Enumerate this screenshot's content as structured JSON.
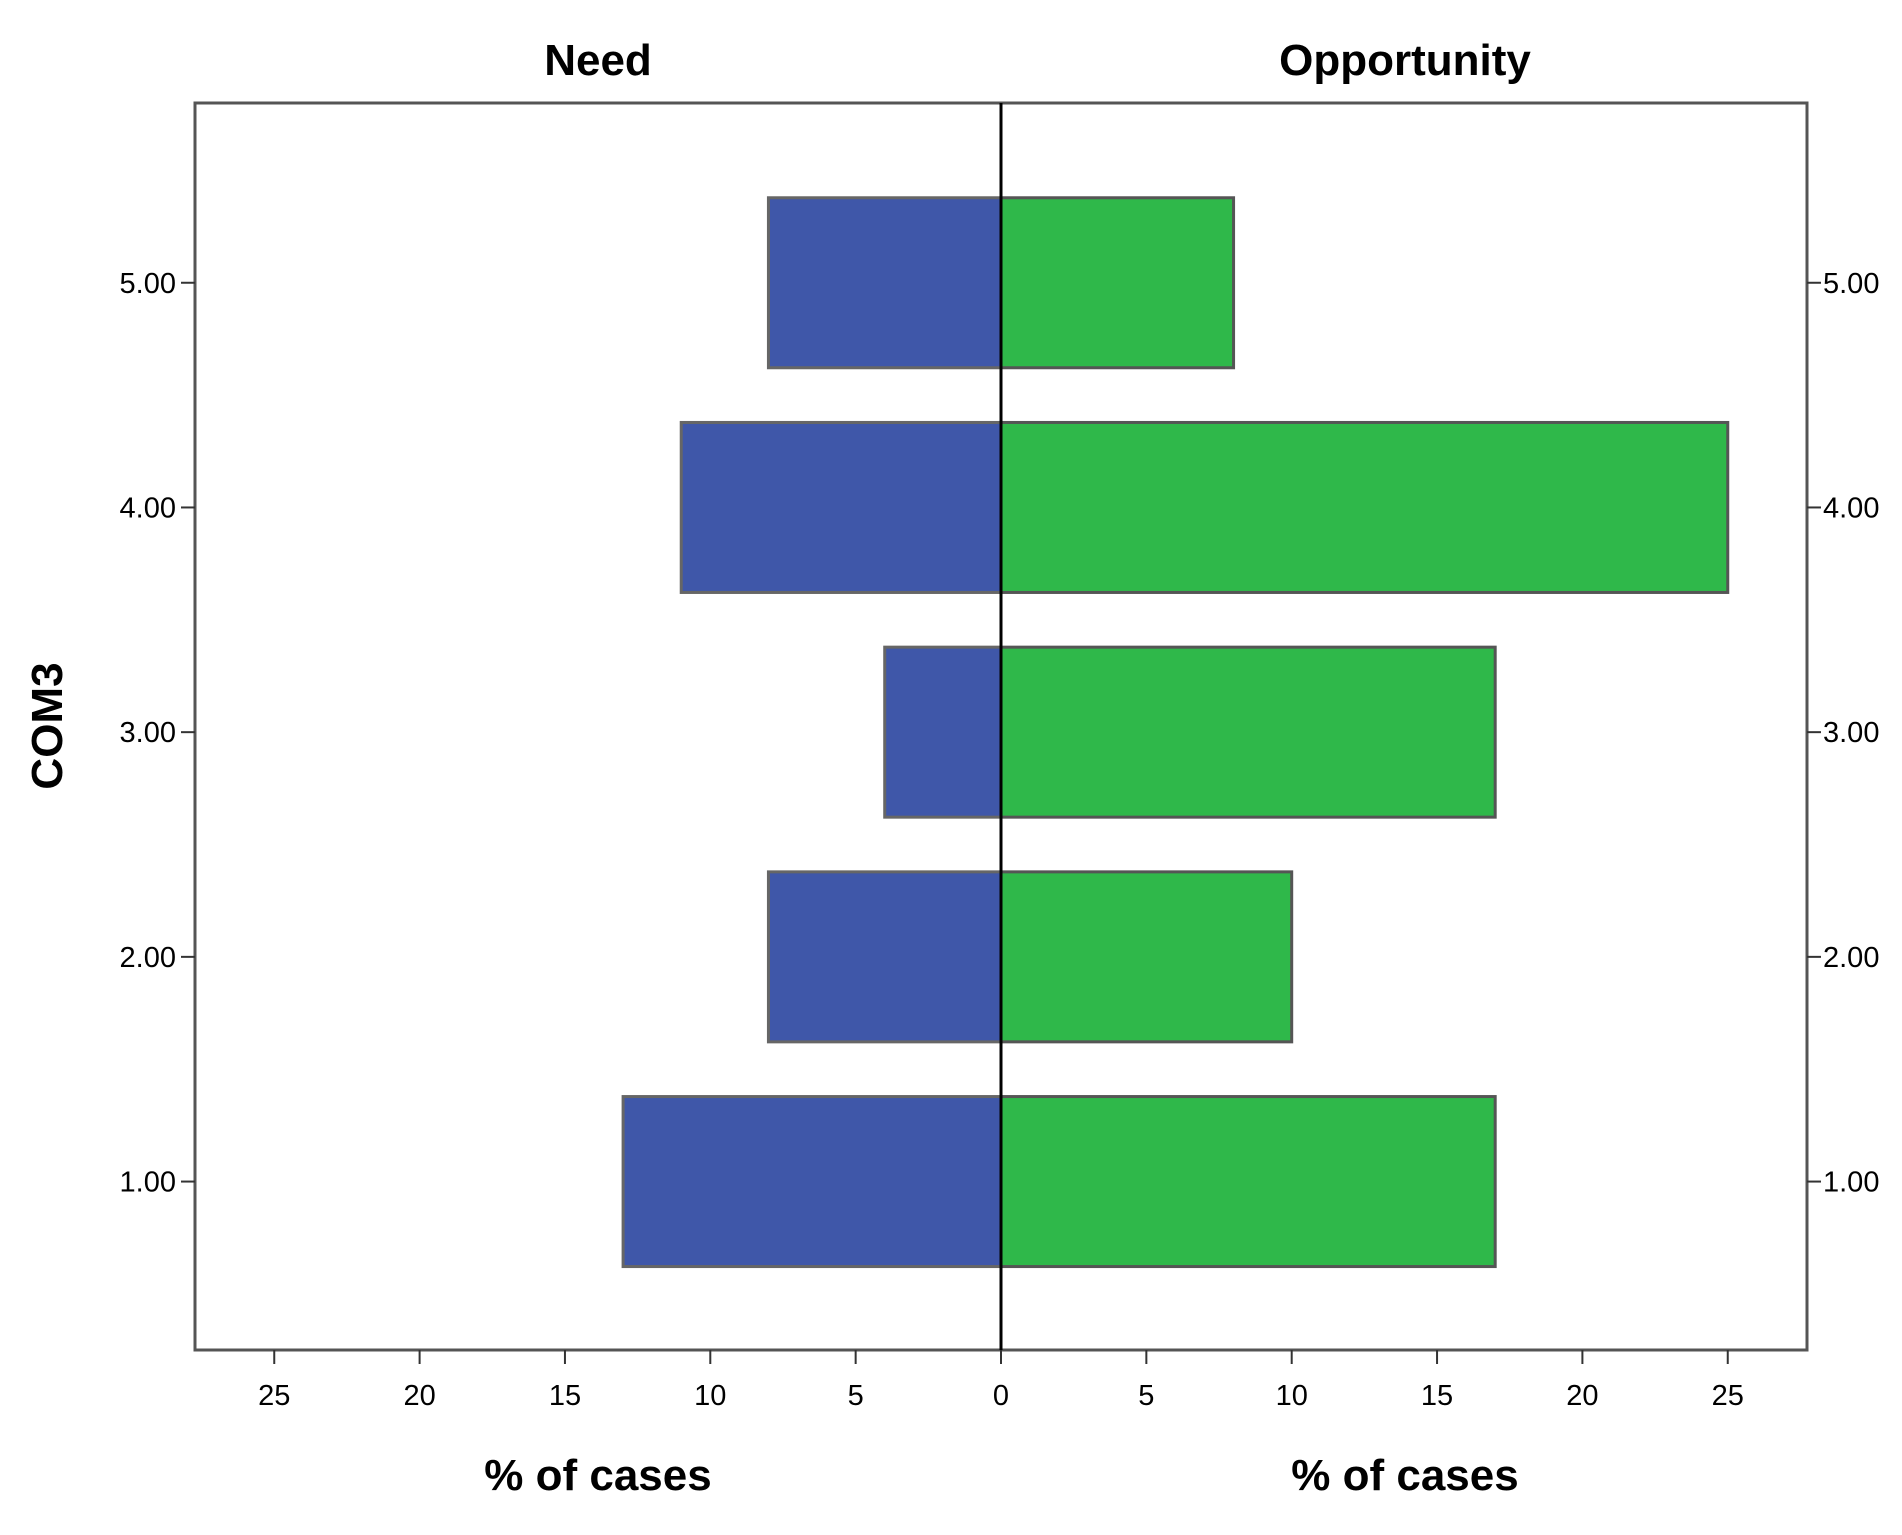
{
  "chart_data": {
    "type": "bar",
    "orientation": "horizontal",
    "layout": "population-pyramid",
    "ylabel": "COM3",
    "categories": [
      "1.00",
      "2.00",
      "3.00",
      "4.00",
      "5.00"
    ],
    "panels": [
      {
        "title": "Need",
        "xlabel": "% of cases",
        "direction": "left"
      },
      {
        "title": "Opportunity",
        "xlabel": "% of cases",
        "direction": "right"
      }
    ],
    "series": [
      {
        "name": "Need",
        "color": "#3f57a9",
        "values": [
          13,
          8,
          4,
          11,
          8
        ]
      },
      {
        "name": "Opportunity",
        "color": "#2fb84a",
        "values": [
          17,
          10,
          17,
          25,
          8
        ]
      }
    ],
    "xticks": [
      0,
      5,
      10,
      15,
      20,
      25
    ],
    "xlim": [
      0,
      27.8
    ],
    "ylim": [
      0.25,
      5.8
    ],
    "grid": false,
    "legend": "none"
  }
}
